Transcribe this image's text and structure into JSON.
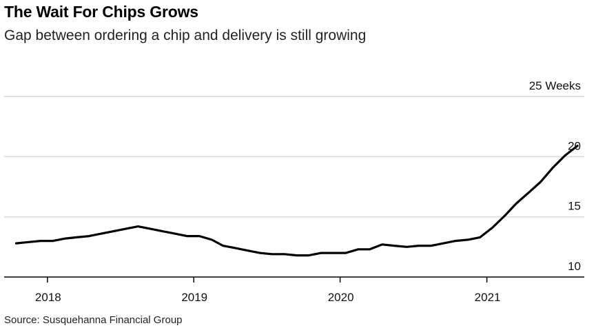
{
  "title": "The Wait For Chips Grows",
  "subtitle": "Gap between ordering a chip and delivery is still growing",
  "source": "Source: Susquehanna Financial Group",
  "chart_data": {
    "type": "line",
    "title": "The Wait For Chips Grows",
    "subtitle": "Gap between ordering a chip and delivery is still growing",
    "ylabel": "",
    "xlabel": "",
    "ylim": [
      10,
      25
    ],
    "xlim": [
      "2017-09-15",
      "2021-09-01"
    ],
    "y_ticks": [
      {
        "value": 10,
        "label": "10"
      },
      {
        "value": 15,
        "label": "15"
      },
      {
        "value": 20,
        "label": "20"
      },
      {
        "value": 25,
        "label": "25 Weeks"
      }
    ],
    "x_ticks": [
      {
        "value": "2018-01-01",
        "label": "2018"
      },
      {
        "value": "2019-01-01",
        "label": "2019"
      },
      {
        "value": "2020-01-01",
        "label": "2020"
      },
      {
        "value": "2021-01-01",
        "label": "2021"
      }
    ],
    "grid": true,
    "line_color": "#000000",
    "series": [
      {
        "x": [
          "2017-10",
          "2017-11",
          "2017-12",
          "2018-01",
          "2018-02",
          "2018-03",
          "2018-04",
          "2018-05",
          "2018-06",
          "2018-07",
          "2018-08",
          "2018-09",
          "2018-10",
          "2018-11",
          "2018-12",
          "2019-01",
          "2019-02",
          "2019-03",
          "2019-04",
          "2019-05",
          "2019-06",
          "2019-07",
          "2019-08",
          "2019-09",
          "2019-10",
          "2019-11",
          "2019-12",
          "2020-01",
          "2020-02",
          "2020-03",
          "2020-04",
          "2020-05",
          "2020-06",
          "2020-07",
          "2020-08",
          "2020-09",
          "2020-10",
          "2020-11",
          "2020-12",
          "2021-01",
          "2021-02",
          "2021-03",
          "2021-04",
          "2021-05",
          "2021-06",
          "2021-07",
          "2021-08"
        ],
        "y": [
          12.8,
          12.9,
          13.0,
          13.0,
          13.2,
          13.3,
          13.4,
          13.6,
          13.8,
          14.0,
          14.2,
          14.0,
          13.8,
          13.6,
          13.4,
          13.4,
          13.1,
          12.6,
          12.4,
          12.2,
          12.0,
          11.9,
          11.9,
          11.8,
          11.8,
          12.0,
          12.0,
          12.0,
          12.3,
          12.3,
          12.7,
          12.6,
          12.5,
          12.6,
          12.6,
          12.8,
          13.0,
          13.1,
          13.3,
          14.1,
          15.1,
          16.1,
          17.0,
          17.9,
          19.1,
          20.1,
          20.9
        ]
      }
    ]
  }
}
